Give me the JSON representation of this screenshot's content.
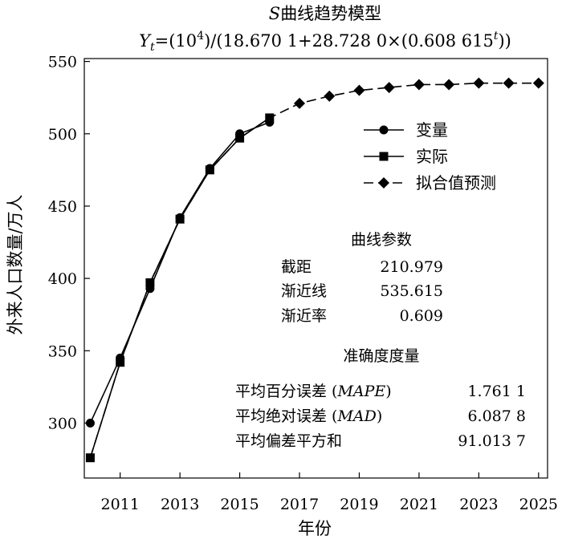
{
  "chart_data": {
    "type": "line",
    "title": "S曲线趋势模型",
    "subtitle_parts": {
      "y": "Y",
      "y_sub": "t",
      "eq_open": "=(10",
      "exp": "4",
      "mid": ")/(18.670 1+28.728 0×(0.608 615",
      "t_sup": "t",
      "close": "))"
    },
    "xlabel": "年份",
    "ylabel": "外来人口数量/万人",
    "xlim": [
      2009.8,
      2025.3
    ],
    "ylim": [
      262,
      552
    ],
    "x_ticks": [
      2011,
      2013,
      2015,
      2017,
      2019,
      2021,
      2023,
      2025
    ],
    "y_ticks": [
      300,
      350,
      400,
      450,
      500,
      550
    ],
    "series": [
      {
        "name": "变量",
        "marker": "circle",
        "line": "solid",
        "x": [
          2010,
          2011,
          2012,
          2013,
          2014,
          2015,
          2016
        ],
        "y": [
          300,
          345,
          393,
          442,
          476,
          500,
          508
        ]
      },
      {
        "name": "实际",
        "marker": "square",
        "line": "solid",
        "x": [
          2010,
          2011,
          2012,
          2013,
          2014,
          2015,
          2016
        ],
        "y": [
          276,
          342,
          397,
          441,
          475,
          497,
          511
        ]
      },
      {
        "name": "拟合值预测",
        "marker": "diamond",
        "line": "dashed",
        "x": [
          2010,
          2011,
          2012,
          2013,
          2014,
          2015,
          2016,
          2017,
          2018,
          2019,
          2020,
          2021,
          2022,
          2023,
          2024,
          2025
        ],
        "y": [
          276,
          342,
          397,
          441,
          475,
          497,
          511,
          521,
          526,
          530,
          532,
          534,
          534,
          535,
          535,
          535
        ]
      }
    ],
    "legend_position": "top-right",
    "grid": false,
    "params": {
      "heading": "曲线参数",
      "rows": [
        {
          "label": "截距",
          "value": "210.979"
        },
        {
          "label": "渐近线",
          "value": "535.615"
        },
        {
          "label": "渐近率",
          "value": "0.609"
        }
      ]
    },
    "accuracy": {
      "heading": "准确度度量",
      "rows": [
        {
          "label": "平均百分误差 (",
          "italic": "MAPE",
          "close": ")",
          "value": "1.761 1"
        },
        {
          "label": "平均绝对误差 (",
          "italic": "MAD",
          "close": ")",
          "value": "6.087 8"
        },
        {
          "label": "平均偏差平方和",
          "italic": "",
          "close": "",
          "value": "91.013 7"
        }
      ]
    }
  }
}
